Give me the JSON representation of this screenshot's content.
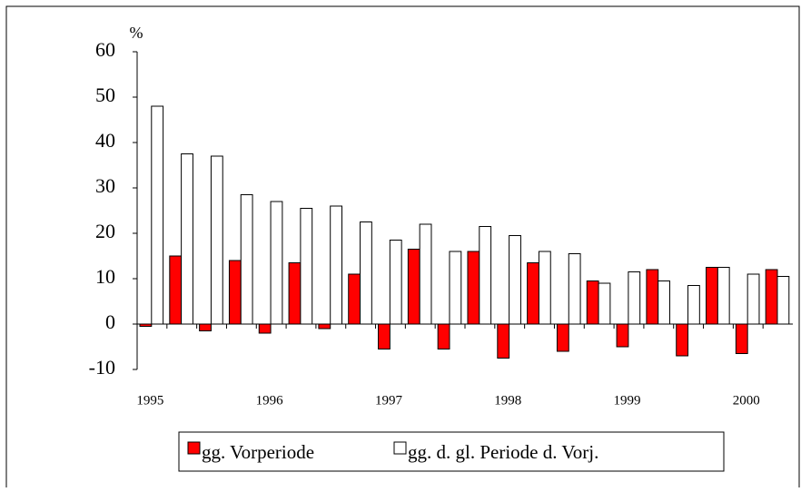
{
  "chart_data": {
    "type": "bar",
    "y_unit": "%",
    "categories": [
      "1995",
      null,
      null,
      null,
      "1996",
      null,
      null,
      null,
      "1997",
      null,
      null,
      null,
      "1998",
      null,
      null,
      null,
      "1999",
      null,
      null,
      null,
      "2000",
      null
    ],
    "series": [
      {
        "name": "gg. Vorperiode",
        "color": "#ff0000",
        "values": [
          -0.5,
          15,
          -1.5,
          14,
          -2,
          13.5,
          -1,
          11,
          -5.5,
          16.5,
          -5.5,
          16,
          -7.5,
          13.5,
          -6,
          9.5,
          -5,
          12,
          -7,
          12.5,
          -6.5,
          12
        ]
      },
      {
        "name": "gg. d. gl. Periode d. Vorj.",
        "color": "#ffffff",
        "values": [
          48,
          37.5,
          37,
          28.5,
          27,
          25.5,
          26,
          22.5,
          18.5,
          22,
          16,
          21.5,
          19.5,
          16,
          15.5,
          9,
          11.5,
          9.5,
          8.5,
          12.5,
          11,
          10.5
        ]
      }
    ],
    "ylim": [
      -10,
      60
    ],
    "yticks": [
      -10,
      0,
      10,
      20,
      30,
      40,
      50,
      60
    ],
    "grid": false,
    "legend": "bottom"
  }
}
